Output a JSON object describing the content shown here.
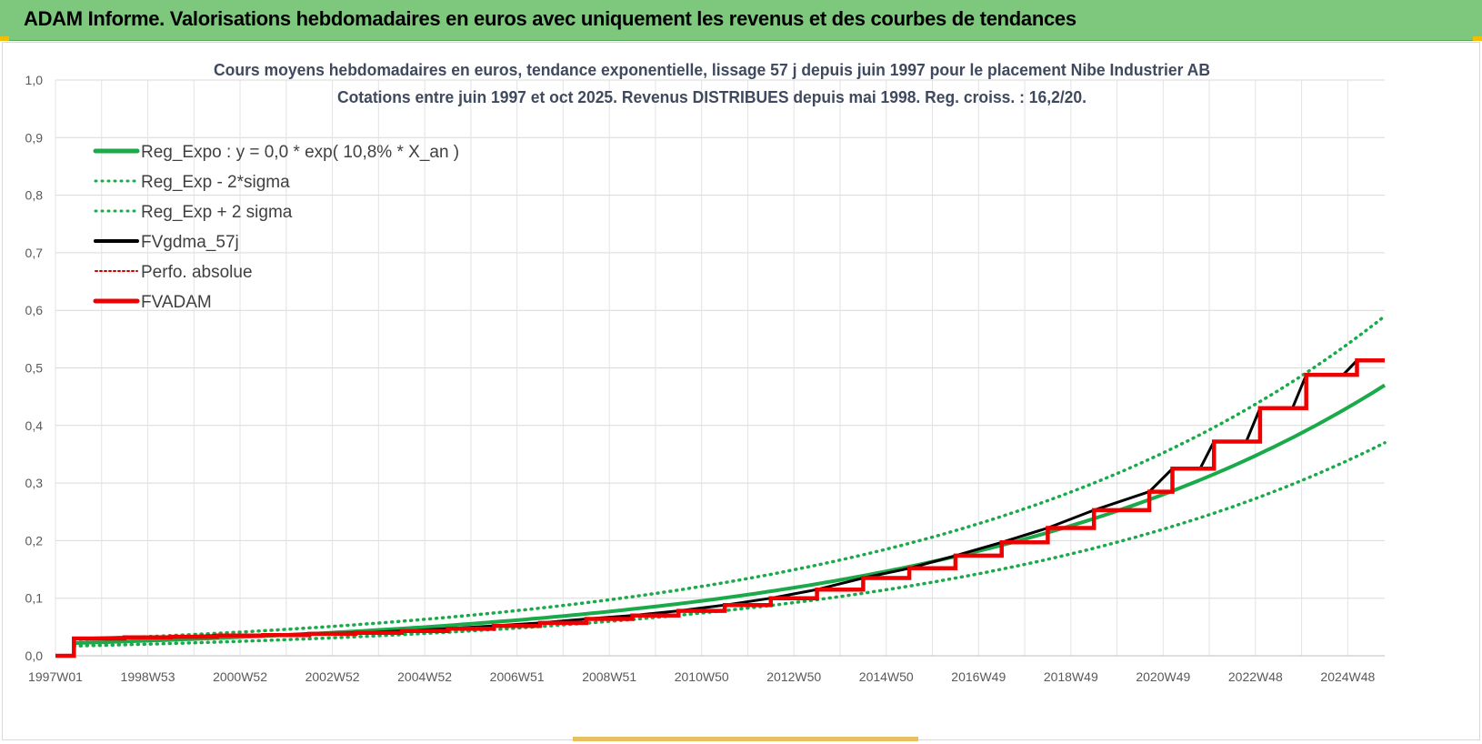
{
  "header": {
    "title": "ADAM Informe. Valorisations hebdomadaires en euros avec uniquement les revenus et des courbes de tendances"
  },
  "chart_data": {
    "type": "line",
    "title_lines": [
      "Cours moyens hebdomadaires en euros, tendance exponentielle, lissage 57 j depuis juin 1997 pour le placement Nibe Industrier AB",
      "Cotations entre juin 1997 et oct 2025. Revenus DISTRIBUES depuis mai 1998. Reg. croiss. : 16,2/20."
    ],
    "x_range_years": [
      1997.0,
      2025.8
    ],
    "ylim": [
      0,
      1.0
    ],
    "y_ticks": [
      {
        "v": 0.0,
        "label": "0,0"
      },
      {
        "v": 0.1,
        "label": "0,1"
      },
      {
        "v": 0.2,
        "label": "0,2"
      },
      {
        "v": 0.3,
        "label": "0,3"
      },
      {
        "v": 0.4,
        "label": "0,4"
      },
      {
        "v": 0.5,
        "label": "0,5"
      },
      {
        "v": 0.6,
        "label": "0,6"
      },
      {
        "v": 0.7,
        "label": "0,7"
      },
      {
        "v": 0.8,
        "label": "0,8"
      },
      {
        "v": 0.9,
        "label": "0,9"
      },
      {
        "v": 1.0,
        "label": "1,0"
      }
    ],
    "x_ticks": [
      {
        "t": 1997.0,
        "label": "1997W01"
      },
      {
        "t": 1999.0,
        "label": "1998W53"
      },
      {
        "t": 2001.0,
        "label": "2000W52"
      },
      {
        "t": 2003.0,
        "label": "2002W52"
      },
      {
        "t": 2005.0,
        "label": "2004W52"
      },
      {
        "t": 2007.0,
        "label": "2006W51"
      },
      {
        "t": 2009.0,
        "label": "2008W51"
      },
      {
        "t": 2011.0,
        "label": "2010W50"
      },
      {
        "t": 2013.0,
        "label": "2012W50"
      },
      {
        "t": 2015.0,
        "label": "2014W50"
      },
      {
        "t": 2017.0,
        "label": "2016W49"
      },
      {
        "t": 2019.0,
        "label": "2018W49"
      },
      {
        "t": 2021.0,
        "label": "2020W49"
      },
      {
        "t": 2023.0,
        "label": "2022W48"
      },
      {
        "t": 2025.0,
        "label": "2024W48"
      }
    ],
    "legend": [
      {
        "label": "Reg_Expo : y = 0,0 * exp( 10,8% *  X_an )",
        "color": "#1aaa4a",
        "style": "solid",
        "width": 5
      },
      {
        "label": "Reg_Exp - 2*sigma",
        "color": "#1aaa4a",
        "style": "dotted",
        "width": 3
      },
      {
        "label": "Reg_Exp + 2 sigma",
        "color": "#1aaa4a",
        "style": "dotted",
        "width": 3
      },
      {
        "label": "FVgdma_57j",
        "color": "#000000",
        "style": "solid",
        "width": 4
      },
      {
        "label": "Perfo. absolue",
        "color": "#cc0000",
        "style": "dotted",
        "width": 2
      },
      {
        "label": "FVADAM",
        "color": "#ee0000",
        "style": "solid",
        "width": 5
      }
    ],
    "regression": {
      "start_year": 1997.4,
      "start_value": 0.022,
      "end_year": 2025.8,
      "end_value": 0.47
    },
    "band_minus": {
      "start_value": 0.017,
      "end_value": 0.37
    },
    "band_plus": {
      "start_value": 0.028,
      "end_value": 0.59
    },
    "fvadam_steps": [
      [
        1997.0,
        0.0
      ],
      [
        1997.4,
        0.0
      ],
      [
        1997.4,
        0.03
      ],
      [
        1998.5,
        0.032
      ],
      [
        1999.5,
        0.033
      ],
      [
        2000.5,
        0.035
      ],
      [
        2001.5,
        0.036
      ],
      [
        2002.5,
        0.038
      ],
      [
        2003.5,
        0.04
      ],
      [
        2004.5,
        0.043
      ],
      [
        2005.5,
        0.047
      ],
      [
        2006.5,
        0.052
      ],
      [
        2007.5,
        0.057
      ],
      [
        2008.5,
        0.064
      ],
      [
        2009.5,
        0.07
      ],
      [
        2010.5,
        0.078
      ],
      [
        2011.5,
        0.088
      ],
      [
        2012.5,
        0.1
      ],
      [
        2013.5,
        0.115
      ],
      [
        2014.5,
        0.135
      ],
      [
        2015.5,
        0.152
      ],
      [
        2016.5,
        0.174
      ],
      [
        2017.5,
        0.197
      ],
      [
        2018.5,
        0.222
      ],
      [
        2019.5,
        0.253
      ],
      [
        2020.7,
        0.285
      ],
      [
        2021.2,
        0.325
      ],
      [
        2021.8,
        0.325
      ],
      [
        2022.1,
        0.372
      ],
      [
        2022.8,
        0.372
      ],
      [
        2023.1,
        0.43
      ],
      [
        2023.8,
        0.43
      ],
      [
        2024.1,
        0.488
      ],
      [
        2024.9,
        0.488
      ],
      [
        2025.2,
        0.513
      ],
      [
        2025.8,
        0.513
      ]
    ]
  }
}
